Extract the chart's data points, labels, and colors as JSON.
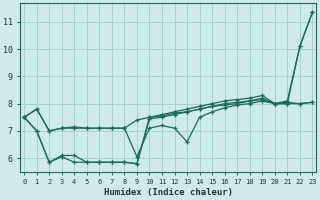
{
  "xlabel": "Humidex (Indice chaleur)",
  "background_color": "#ceeaea",
  "grid_color": "#a8d0d0",
  "line_color": "#1a6b5a",
  "x_values": [
    0,
    1,
    2,
    3,
    4,
    5,
    6,
    7,
    8,
    9,
    10,
    11,
    12,
    13,
    14,
    15,
    16,
    17,
    18,
    19,
    20,
    21,
    22,
    23
  ],
  "series": [
    [
      7.5,
      7.8,
      7.0,
      7.1,
      7.15,
      7.1,
      7.1,
      7.1,
      7.1,
      7.4,
      7.5,
      7.6,
      7.7,
      7.8,
      7.9,
      8.0,
      8.1,
      8.15,
      8.2,
      8.3,
      8.0,
      8.0,
      10.1,
      11.35
    ],
    [
      7.5,
      7.8,
      7.0,
      7.1,
      7.1,
      7.1,
      7.1,
      7.1,
      7.1,
      6.05,
      7.1,
      7.2,
      7.1,
      6.6,
      7.5,
      7.7,
      7.85,
      7.95,
      8.0,
      8.1,
      8.0,
      8.1,
      10.1,
      11.35
    ],
    [
      7.5,
      7.0,
      5.85,
      6.05,
      5.85,
      5.85,
      5.85,
      5.85,
      5.85,
      5.8,
      7.45,
      7.5,
      7.6,
      7.7,
      7.8,
      7.9,
      7.95,
      8.0,
      8.1,
      8.15,
      8.0,
      8.05,
      8.0,
      8.05
    ],
    [
      7.5,
      7.0,
      5.85,
      6.1,
      6.1,
      5.85,
      5.85,
      5.85,
      5.85,
      5.8,
      7.5,
      7.55,
      7.65,
      7.7,
      7.8,
      7.9,
      8.0,
      8.05,
      8.1,
      8.2,
      8.0,
      8.0,
      8.0,
      8.05
    ]
  ],
  "ylim": [
    5.5,
    11.7
  ],
  "xlim": [
    -0.3,
    23.3
  ],
  "yticks": [
    6,
    7,
    8,
    9,
    10,
    11
  ],
  "xticks": [
    0,
    1,
    2,
    3,
    4,
    5,
    6,
    7,
    8,
    9,
    10,
    11,
    12,
    13,
    14,
    15,
    16,
    17,
    18,
    19,
    20,
    21,
    22,
    23
  ]
}
